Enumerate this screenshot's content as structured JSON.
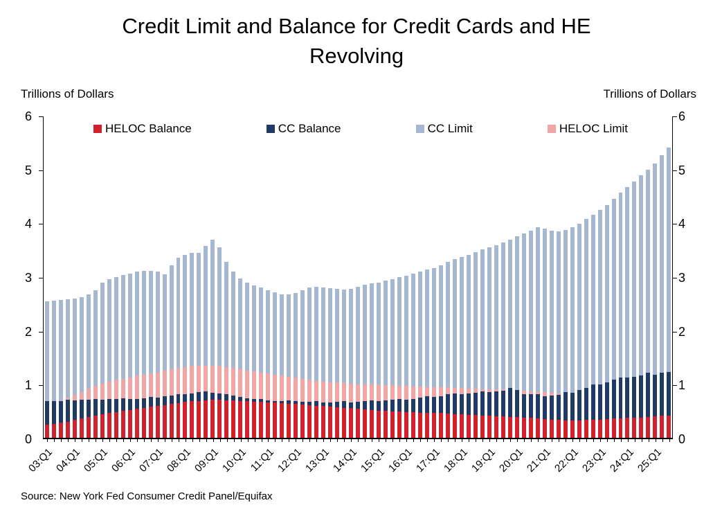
{
  "title": {
    "line1": "Credit Limit and Balance for Credit Cards and HE",
    "line2": "Revolving"
  },
  "left_caption": "Trillions of Dollars",
  "right_caption": "Trillions of Dollars",
  "source": "Source: New York Fed Consumer Credit Panel/Equifax",
  "chart_data": {
    "type": "bar",
    "overlay": true,
    "n_bars": 91,
    "ylim": [
      0,
      6
    ],
    "y_ticks": [
      0,
      1,
      2,
      3,
      4,
      5,
      6
    ],
    "x_label_every": 4,
    "x_tick_labels": [
      "03:Q1",
      "04:Q1",
      "05:Q1",
      "06:Q1",
      "07:Q1",
      "08:Q1",
      "09:Q1",
      "10:Q1",
      "11:Q1",
      "12:Q1",
      "13:Q1",
      "14:Q1",
      "15:Q1",
      "16:Q1",
      "17:Q1",
      "18:Q1",
      "19:Q1",
      "20:Q1",
      "21:Q1",
      "22:Q1",
      "23:Q1",
      "24:Q1",
      "25:Q1"
    ],
    "quarters_range": "2003:Q1 through 2025:Q3, quarterly",
    "series": [
      {
        "id": "heloc-balance",
        "name": "HELOC Balance",
        "color": "#d0212d",
        "z": 4,
        "values": [
          0.24,
          0.26,
          0.28,
          0.3,
          0.33,
          0.36,
          0.39,
          0.42,
          0.44,
          0.46,
          0.48,
          0.5,
          0.52,
          0.54,
          0.56,
          0.58,
          0.59,
          0.61,
          0.63,
          0.65,
          0.67,
          0.68,
          0.69,
          0.7,
          0.71,
          0.71,
          0.7,
          0.7,
          0.69,
          0.68,
          0.67,
          0.67,
          0.66,
          0.66,
          0.65,
          0.64,
          0.63,
          0.62,
          0.61,
          0.6,
          0.59,
          0.58,
          0.57,
          0.56,
          0.55,
          0.54,
          0.53,
          0.52,
          0.51,
          0.5,
          0.49,
          0.49,
          0.48,
          0.48,
          0.47,
          0.47,
          0.46,
          0.46,
          0.45,
          0.44,
          0.44,
          0.43,
          0.43,
          0.42,
          0.41,
          0.4,
          0.4,
          0.39,
          0.39,
          0.38,
          0.37,
          0.36,
          0.35,
          0.34,
          0.33,
          0.32,
          0.32,
          0.32,
          0.33,
          0.34,
          0.34,
          0.35,
          0.36,
          0.36,
          0.37,
          0.38,
          0.38,
          0.39,
          0.4,
          0.41,
          0.42
        ]
      },
      {
        "id": "cc-balance",
        "name": "CC Balance",
        "color": "#1f3a64",
        "z": 3,
        "values": [
          0.69,
          0.69,
          0.69,
          0.71,
          0.7,
          0.71,
          0.71,
          0.72,
          0.71,
          0.72,
          0.73,
          0.74,
          0.72,
          0.73,
          0.74,
          0.76,
          0.75,
          0.77,
          0.79,
          0.82,
          0.81,
          0.83,
          0.85,
          0.87,
          0.84,
          0.83,
          0.81,
          0.79,
          0.76,
          0.74,
          0.73,
          0.73,
          0.7,
          0.69,
          0.69,
          0.7,
          0.68,
          0.67,
          0.67,
          0.68,
          0.66,
          0.66,
          0.67,
          0.68,
          0.66,
          0.67,
          0.68,
          0.7,
          0.68,
          0.7,
          0.71,
          0.73,
          0.71,
          0.73,
          0.75,
          0.78,
          0.76,
          0.78,
          0.81,
          0.83,
          0.82,
          0.83,
          0.84,
          0.87,
          0.85,
          0.87,
          0.88,
          0.93,
          0.89,
          0.82,
          0.81,
          0.82,
          0.77,
          0.79,
          0.8,
          0.86,
          0.84,
          0.89,
          0.93,
          0.99,
          0.99,
          1.03,
          1.08,
          1.13,
          1.12,
          1.14,
          1.17,
          1.21,
          1.18,
          1.21,
          1.23
        ]
      },
      {
        "id": "cc-limit",
        "name": "CC Limit",
        "color": "#a6b7d1",
        "z": 1,
        "values": [
          2.55,
          2.56,
          2.57,
          2.58,
          2.6,
          2.63,
          2.68,
          2.76,
          2.9,
          2.96,
          3.0,
          3.04,
          3.06,
          3.1,
          3.12,
          3.12,
          3.1,
          3.05,
          3.22,
          3.36,
          3.42,
          3.45,
          3.45,
          3.58,
          3.7,
          3.55,
          3.28,
          3.1,
          2.98,
          2.9,
          2.85,
          2.8,
          2.76,
          2.72,
          2.68,
          2.68,
          2.7,
          2.76,
          2.8,
          2.82,
          2.8,
          2.79,
          2.78,
          2.77,
          2.78,
          2.82,
          2.86,
          2.88,
          2.9,
          2.93,
          2.96,
          3.0,
          3.03,
          3.07,
          3.1,
          3.14,
          3.17,
          3.22,
          3.28,
          3.34,
          3.38,
          3.42,
          3.47,
          3.52,
          3.56,
          3.6,
          3.65,
          3.7,
          3.76,
          3.81,
          3.87,
          3.93,
          3.9,
          3.87,
          3.85,
          3.88,
          3.93,
          4.0,
          4.08,
          4.16,
          4.25,
          4.35,
          4.46,
          4.58,
          4.68,
          4.79,
          4.9,
          5.0,
          5.12,
          5.28,
          5.42
        ]
      },
      {
        "id": "heloc-limit",
        "name": "HELOC Limit",
        "color": "#f2a5a5",
        "z": 2,
        "values": [
          0.6,
          0.65,
          0.7,
          0.75,
          0.8,
          0.86,
          0.92,
          0.97,
          1.01,
          1.05,
          1.08,
          1.1,
          1.13,
          1.16,
          1.18,
          1.2,
          1.22,
          1.25,
          1.28,
          1.3,
          1.32,
          1.34,
          1.35,
          1.35,
          1.35,
          1.34,
          1.32,
          1.3,
          1.28,
          1.26,
          1.24,
          1.22,
          1.2,
          1.18,
          1.16,
          1.14,
          1.12,
          1.1,
          1.08,
          1.06,
          1.05,
          1.04,
          1.03,
          1.02,
          1.01,
          1.0,
          1.0,
          0.99,
          0.99,
          0.98,
          0.98,
          0.97,
          0.97,
          0.96,
          0.96,
          0.95,
          0.95,
          0.94,
          0.94,
          0.93,
          0.93,
          0.92,
          0.92,
          0.91,
          0.91,
          0.9,
          0.9,
          0.89,
          0.89,
          0.88,
          0.87,
          0.86,
          0.85,
          0.84,
          0.83,
          0.83,
          0.83,
          0.84,
          0.85,
          0.86,
          0.87,
          0.88,
          0.89,
          0.9,
          0.92,
          0.94,
          0.96,
          0.98,
          0.99,
          1.0,
          1.01
        ]
      }
    ]
  }
}
